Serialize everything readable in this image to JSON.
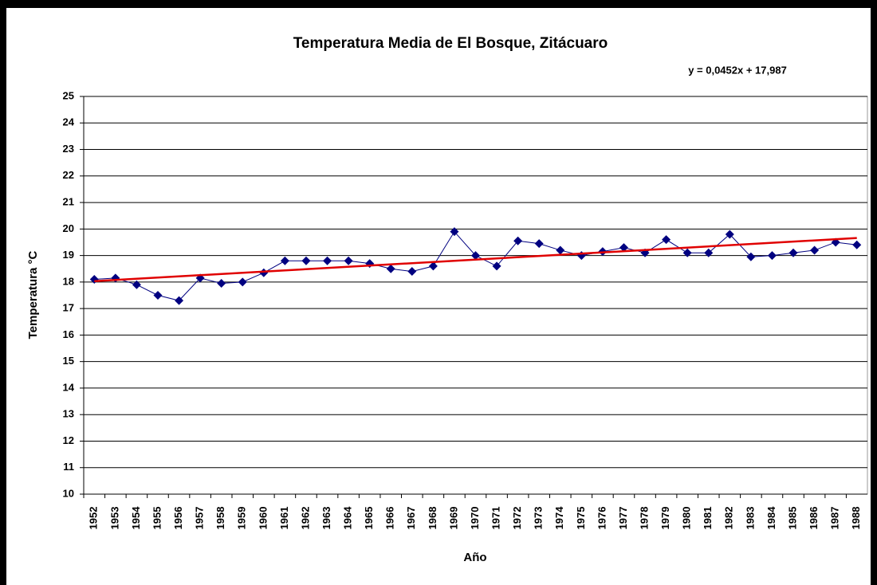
{
  "chart_data": {
    "type": "line",
    "title": "Temperatura Media de El Bosque,  Zitácuaro",
    "x_label": "Año",
    "y_label": "Temperatura °C",
    "categories": [
      "1952",
      "1953",
      "1954",
      "1955",
      "1956",
      "1957",
      "1958",
      "1959",
      "1960",
      "1961",
      "1962",
      "1963",
      "1964",
      "1965",
      "1966",
      "1967",
      "1968",
      "1969",
      "1970",
      "1971",
      "1972",
      "1973",
      "1974",
      "1975",
      "1976",
      "1977",
      "1978",
      "1979",
      "1980",
      "1981",
      "1982",
      "1983",
      "1984",
      "1985",
      "1986",
      "1987",
      "1988"
    ],
    "series": [
      {
        "name": "Temperatura",
        "color": "#000080",
        "values": [
          18.1,
          18.15,
          17.9,
          17.5,
          17.3,
          18.15,
          17.95,
          18.0,
          18.35,
          18.8,
          18.8,
          18.8,
          18.8,
          18.7,
          18.5,
          18.4,
          18.6,
          19.9,
          19.0,
          18.6,
          19.55,
          19.45,
          19.2,
          19.0,
          19.15,
          19.3,
          19.1,
          19.6,
          19.1,
          19.1,
          19.8,
          18.95,
          19.0,
          19.1,
          19.2,
          19.5,
          19.4
        ]
      }
    ],
    "trendline": {
      "color": "#e00000",
      "slope": 0.0452,
      "intercept": 17.987,
      "label": "y = 0,0452x + 17,987"
    },
    "ylim": [
      10,
      25
    ],
    "yticks": [
      10,
      11,
      12,
      13,
      14,
      15,
      16,
      17,
      18,
      19,
      20,
      21,
      22,
      23,
      24,
      25
    ],
    "grid": true
  }
}
